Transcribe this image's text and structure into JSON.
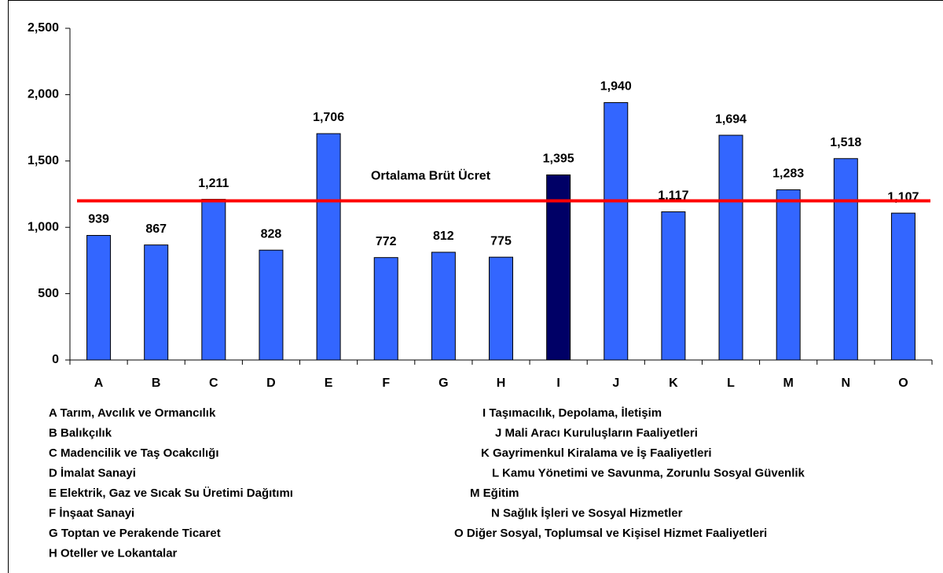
{
  "chart_data": {
    "type": "bar",
    "categories": [
      "A",
      "B",
      "C",
      "D",
      "E",
      "F",
      "G",
      "H",
      "I",
      "J",
      "K",
      "L",
      "M",
      "N",
      "O"
    ],
    "values": [
      939,
      867,
      1211,
      828,
      1706,
      772,
      812,
      775,
      1395,
      1940,
      1117,
      1694,
      1283,
      1518,
      1107
    ],
    "value_labels": [
      "939",
      "867",
      "1,211",
      "828",
      "1,706",
      "772",
      "812",
      "775",
      "1,395",
      "1,940",
      "1,117",
      "1,694",
      "1,283",
      "1,518",
      "1,107"
    ],
    "colors": [
      "#3366ff",
      "#3366ff",
      "#3366ff",
      "#3366ff",
      "#3366ff",
      "#3366ff",
      "#3366ff",
      "#3366ff",
      "#000066",
      "#3366ff",
      "#3366ff",
      "#3366ff",
      "#3366ff",
      "#3366ff",
      "#3366ff"
    ],
    "ylim": [
      0,
      2500
    ],
    "yticks": [
      0,
      500,
      {
        "value": 1000,
        "label": "1,000"
      },
      {
        "value": 1500,
        "label": "1,500"
      },
      {
        "value": 2000,
        "label": "2,000"
      },
      {
        "value": 2500,
        "label": "2,500"
      }
    ],
    "reference_line": {
      "value": 1200,
      "label": "Ortalama Brüt Ücret",
      "color": "#ff0000"
    },
    "legend_items": [
      "A Tarım, Avcılık ve Ormancılık",
      "B Balıkçılık",
      "C Madencilik ve Taş Ocakcılığı",
      "D İmalat Sanayi",
      "E Elektrik, Gaz ve Sıcak Su Üretimi Dağıtımı",
      "F İnşaat Sanayi",
      "G Toptan ve Perakende Ticaret",
      "H Oteller ve Lokantalar",
      "I Taşımacılık, Depolama, İletişim",
      "J Mali Aracı Kuruluşların Faaliyetleri",
      "K Gayrimenkul Kiralama ve İş Faaliyetleri",
      "L Kamu Yönetimi ve Savunma, Zorunlu Sosyal Güvenlik",
      "M Eğitim",
      "N Sağlık İşleri ve Sosyal Hizmetler",
      "O Diğer Sosyal, Toplumsal ve Kişisel Hizmet Faaliyetleri"
    ]
  }
}
